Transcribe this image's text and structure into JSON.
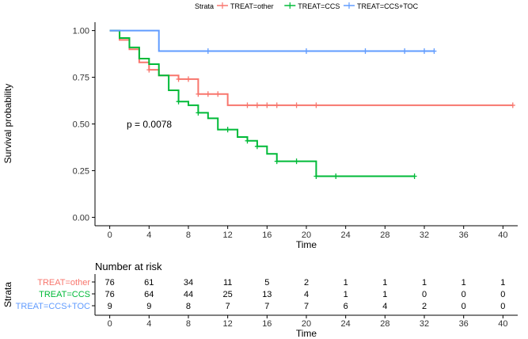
{
  "legend": {
    "title": "Strata",
    "position": "top"
  },
  "risk_table": {
    "title": "Number at risk",
    "ylabel": "Strata",
    "xlabel": "Time",
    "times": [
      0,
      4,
      8,
      12,
      16,
      20,
      24,
      28,
      32,
      36,
      40
    ],
    "rows": [
      {
        "label": "TREAT=other",
        "color": "#F8766D",
        "counts": [
          "76",
          "61",
          "34",
          "11",
          "5",
          "2",
          "1",
          "1",
          "1",
          "1",
          "1"
        ]
      },
      {
        "label": "TREAT=CCS",
        "color": "#00BA38",
        "counts": [
          "76",
          "64",
          "44",
          "25",
          "13",
          "4",
          "1",
          "1",
          "0",
          "0",
          "0"
        ]
      },
      {
        "label": "TREAT=CCS+TOC",
        "color": "#619CFF",
        "counts": [
          "9",
          "9",
          "8",
          "7",
          "7",
          "7",
          "6",
          "4",
          "2",
          "0",
          "0"
        ]
      }
    ]
  },
  "chart_data": {
    "type": "line",
    "subtype": "kaplan-meier",
    "xlabel": "Time",
    "ylabel": "Survival probability",
    "xlim": [
      -1.5,
      41.5
    ],
    "ylim": [
      -0.045,
      1.045
    ],
    "xticks": [
      0,
      4,
      8,
      12,
      16,
      20,
      24,
      28,
      32,
      36,
      40
    ],
    "yticks": [
      0,
      0.25,
      0.5,
      0.75,
      1.0
    ],
    "ytick_labels": [
      "0.00",
      "0.25",
      "0.50",
      "0.75",
      "1.00"
    ],
    "grid": false,
    "annotation": {
      "text": "p = 0.0078",
      "x": 1,
      "y": 0.48
    },
    "series": [
      {
        "name": "TREAT=other",
        "color": "#F8766D",
        "steps": [
          [
            0,
            1.0
          ],
          [
            1,
            0.95
          ],
          [
            2,
            0.9
          ],
          [
            3,
            0.83
          ],
          [
            4,
            0.79
          ],
          [
            5,
            0.76
          ],
          [
            7,
            0.74
          ],
          [
            9,
            0.66
          ],
          [
            12,
            0.6
          ],
          [
            41,
            0.6
          ]
        ],
        "censors": [
          [
            4,
            0.79
          ],
          [
            7,
            0.74
          ],
          [
            8,
            0.74
          ],
          [
            9,
            0.66
          ],
          [
            10,
            0.66
          ],
          [
            11,
            0.66
          ],
          [
            14,
            0.6
          ],
          [
            15,
            0.6
          ],
          [
            16,
            0.6
          ],
          [
            17,
            0.6
          ],
          [
            19,
            0.6
          ],
          [
            21,
            0.6
          ],
          [
            41,
            0.6
          ]
        ]
      },
      {
        "name": "TREAT=CCS",
        "color": "#00BA38",
        "steps": [
          [
            0,
            1.0
          ],
          [
            1,
            0.96
          ],
          [
            2,
            0.91
          ],
          [
            3,
            0.85
          ],
          [
            4,
            0.82
          ],
          [
            5,
            0.76
          ],
          [
            6,
            0.68
          ],
          [
            7,
            0.62
          ],
          [
            8,
            0.6
          ],
          [
            9,
            0.56
          ],
          [
            10,
            0.53
          ],
          [
            11,
            0.47
          ],
          [
            13,
            0.43
          ],
          [
            14,
            0.41
          ],
          [
            15,
            0.38
          ],
          [
            16,
            0.34
          ],
          [
            17,
            0.3
          ],
          [
            21,
            0.22
          ],
          [
            31,
            0.22
          ]
        ],
        "censors": [
          [
            7,
            0.62
          ],
          [
            9,
            0.56
          ],
          [
            12,
            0.47
          ],
          [
            14,
            0.41
          ],
          [
            15,
            0.38
          ],
          [
            17,
            0.3
          ],
          [
            19,
            0.3
          ],
          [
            21,
            0.22
          ],
          [
            23,
            0.22
          ],
          [
            31,
            0.22
          ]
        ]
      },
      {
        "name": "TREAT=CCS+TOC",
        "color": "#619CFF",
        "steps": [
          [
            0,
            1.0
          ],
          [
            5,
            0.89
          ],
          [
            33,
            0.89
          ]
        ],
        "censors": [
          [
            10,
            0.89
          ],
          [
            20,
            0.89
          ],
          [
            26,
            0.89
          ],
          [
            30,
            0.89
          ],
          [
            32,
            0.89
          ],
          [
            33,
            0.89
          ]
        ]
      }
    ]
  }
}
